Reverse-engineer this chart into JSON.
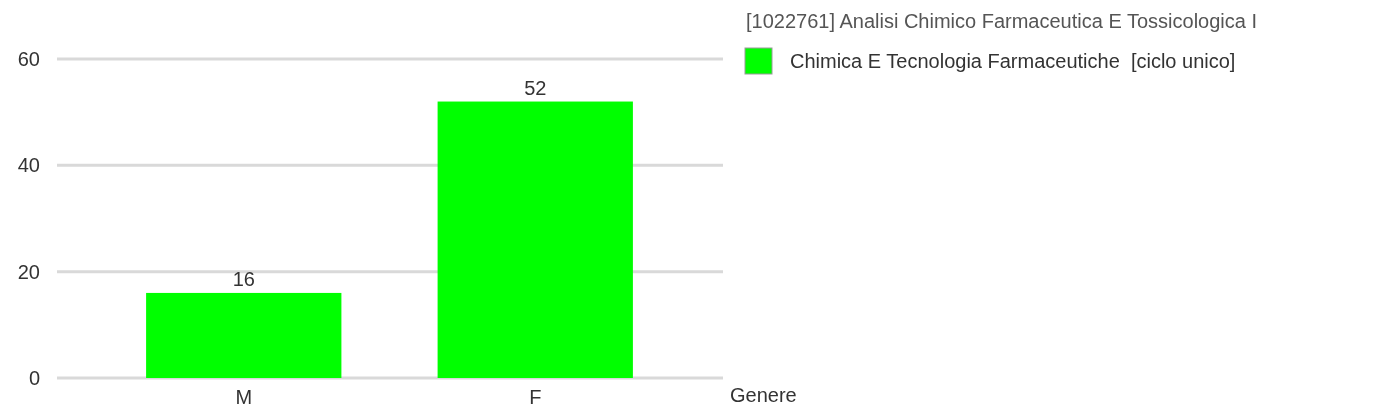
{
  "chart_data": {
    "type": "bar",
    "categories": [
      "M",
      "F"
    ],
    "xlabel": "Genere",
    "legend_title": "[1022761] Analisi Chimico Farmaceutica E Tossicologica I",
    "series": [
      {
        "name": "Chimica E Tecnologia Farmaceutiche  [ciclo unico]",
        "color": "#00ff00",
        "values": [
          16,
          52
        ]
      }
    ],
    "ylim": [
      0,
      60
    ],
    "yticks": [
      0,
      20,
      40,
      60
    ],
    "grid": "y",
    "legend": "top right",
    "data_labels": true
  }
}
